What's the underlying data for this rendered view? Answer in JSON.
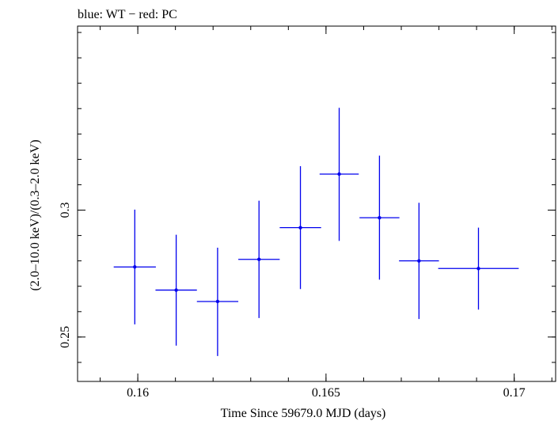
{
  "chart_data": {
    "type": "scatter",
    "title": "blue: WT − red: PC",
    "xlabel": "Time Since 59679.0 MJD (days)",
    "ylabel": "(2.0–10.0 keV)/(0.3–2.0 keV)",
    "xlim": [
      0.1584,
      0.1711
    ],
    "ylim": [
      0.2325,
      0.3725
    ],
    "x_ticks": [
      {
        "value": 0.16,
        "label": "0.16"
      },
      {
        "value": 0.165,
        "label": "0.165"
      },
      {
        "value": 0.17,
        "label": "0.17"
      }
    ],
    "y_ticks": [
      {
        "value": 0.25,
        "label": "0.25"
      },
      {
        "value": 0.3,
        "label": "0.3"
      }
    ],
    "grid": false,
    "series": [
      {
        "color": "#0000ee",
        "points": [
          {
            "x": 0.15992,
            "xerr": 0.00056,
            "y": 0.2776,
            "yerr_low": 0.0226,
            "yerr_high": 0.0226
          },
          {
            "x": 0.16102,
            "xerr": 0.00055,
            "y": 0.2685,
            "yerr_low": 0.0219,
            "yerr_high": 0.0218
          },
          {
            "x": 0.16212,
            "xerr": 0.00055,
            "y": 0.264,
            "yerr_low": 0.0215,
            "yerr_high": 0.0212
          },
          {
            "x": 0.16322,
            "xerr": 0.00055,
            "y": 0.2806,
            "yerr_low": 0.0231,
            "yerr_high": 0.0231
          },
          {
            "x": 0.16432,
            "xerr": 0.00055,
            "y": 0.2931,
            "yerr_low": 0.0242,
            "yerr_high": 0.0242
          },
          {
            "x": 0.16535,
            "xerr": 0.00052,
            "y": 0.3142,
            "yerr_low": 0.0263,
            "yerr_high": 0.0261
          },
          {
            "x": 0.16642,
            "xerr": 0.00053,
            "y": 0.297,
            "yerr_low": 0.0244,
            "yerr_high": 0.0245
          },
          {
            "x": 0.16747,
            "xerr": 0.00053,
            "y": 0.28,
            "yerr_low": 0.0229,
            "yerr_high": 0.0229
          },
          {
            "x": 0.16905,
            "xerr": 0.00107,
            "y": 0.277,
            "yerr_low": 0.0162,
            "yerr_high": 0.0161
          }
        ]
      }
    ]
  }
}
